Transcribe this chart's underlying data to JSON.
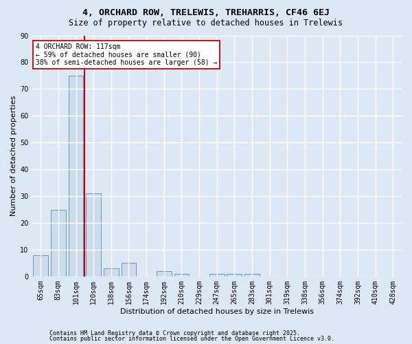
{
  "title1": "4, ORCHARD ROW, TRELEWIS, TREHARRIS, CF46 6EJ",
  "title2": "Size of property relative to detached houses in Trelewis",
  "xlabel": "Distribution of detached houses by size in Trelewis",
  "ylabel": "Number of detached properties",
  "categories": [
    "65sqm",
    "83sqm",
    "101sqm",
    "120sqm",
    "138sqm",
    "156sqm",
    "174sqm",
    "192sqm",
    "210sqm",
    "229sqm",
    "247sqm",
    "265sqm",
    "283sqm",
    "301sqm",
    "319sqm",
    "338sqm",
    "356sqm",
    "374sqm",
    "392sqm",
    "410sqm",
    "428sqm"
  ],
  "values": [
    8,
    25,
    75,
    31,
    3,
    5,
    0,
    2,
    1,
    0,
    1,
    1,
    1,
    0,
    0,
    0,
    0,
    0,
    0,
    0,
    0
  ],
  "bar_color": "#ccdcec",
  "bar_edge_color": "#6699bb",
  "vline_color": "#cc0000",
  "ylim": [
    0,
    90
  ],
  "yticks": [
    0,
    10,
    20,
    30,
    40,
    50,
    60,
    70,
    80,
    90
  ],
  "annotation_text": "4 ORCHARD ROW: 117sqm\n← 59% of detached houses are smaller (90)\n38% of semi-detached houses are larger (58) →",
  "annotation_box_color": "#ffffff",
  "annotation_box_edge": "#cc0000",
  "footer1": "Contains HM Land Registry data © Crown copyright and database right 2025.",
  "footer2": "Contains public sector information licensed under the Open Government Licence v3.0.",
  "bg_color": "#dce8f4",
  "grid_color": "#ffffff",
  "title_fontsize": 9.5,
  "subtitle_fontsize": 8.5,
  "axis_label_fontsize": 8,
  "tick_fontsize": 7,
  "footer_fontsize": 6,
  "annotation_fontsize": 7
}
